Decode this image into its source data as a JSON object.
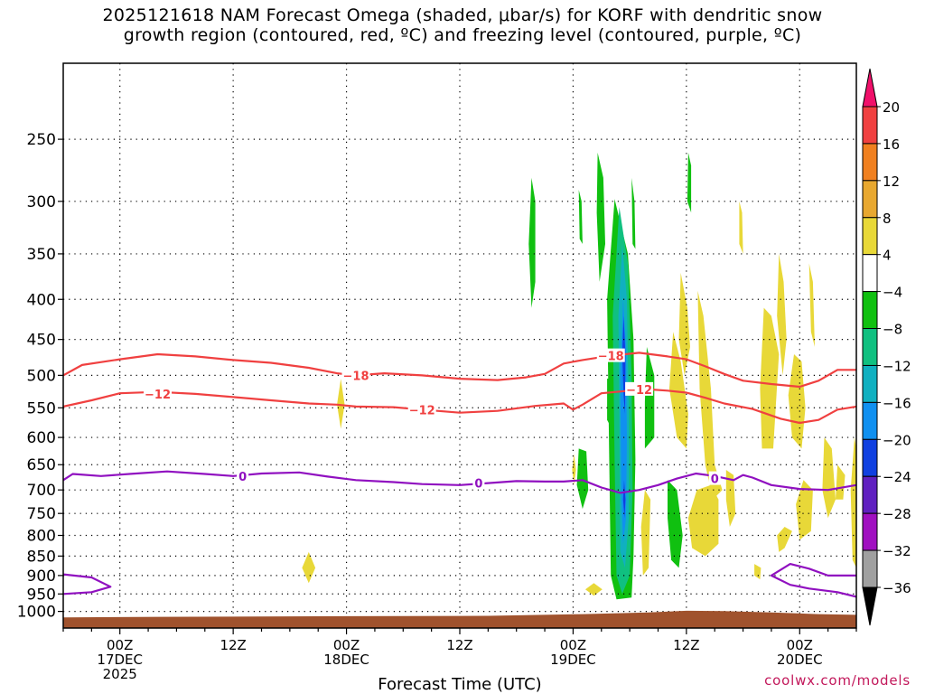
{
  "title": {
    "line1": "2025121618 NAM Forecast Omega (shaded, μbar/s) for KORF with dendritic snow",
    "line2": "growth region (contoured, red, ºC) and freezing level (contoured, purple, ºC)"
  },
  "credit": "coolwx.com/models",
  "chart_data": {
    "type": "time-height cross section",
    "title": "2025121618 NAM Forecast Omega (shaded, μbar/s) for KORF with dendritic snow growth region (contoured, red, ºC) and freezing level (contoured, purple, ºC)",
    "xlabel": "Forecast Time (UTC)",
    "x_unit": "forecast hour from 2025-12-16 18Z",
    "xlim": [
      0,
      84
    ],
    "ylim": [
      1050,
      200
    ],
    "y_scale": "log-pressure (inverted)",
    "y_ticks": [
      250,
      300,
      350,
      400,
      450,
      500,
      550,
      600,
      650,
      700,
      750,
      800,
      850,
      900,
      950,
      1000
    ],
    "grid": true,
    "x_ticks": [
      {
        "x": 6,
        "lines": [
          "00Z",
          "17DEC",
          "2025"
        ]
      },
      {
        "x": 18,
        "lines": [
          "12Z"
        ]
      },
      {
        "x": 30,
        "lines": [
          "00Z",
          "18DEC"
        ]
      },
      {
        "x": 42,
        "lines": [
          "12Z"
        ]
      },
      {
        "x": 54,
        "lines": [
          "00Z",
          "19DEC"
        ]
      },
      {
        "x": 66,
        "lines": [
          "12Z"
        ]
      },
      {
        "x": 78,
        "lines": [
          "00Z",
          "20DEC"
        ]
      }
    ],
    "colorbar": {
      "labels": [
        "20",
        "16",
        "12",
        "8",
        "4",
        "-4",
        "-8",
        "-12",
        "-16",
        "-20",
        "-24",
        "-28",
        "-32",
        "-36"
      ],
      "colors_top_to_bottom": [
        "#f0106a",
        "#f04040",
        "#f08020",
        "#e8a830",
        "#e8d838",
        "#ffffff",
        "#10c010",
        "#10c080",
        "#10b0c0",
        "#1090f0",
        "#1040e0",
        "#6020c0",
        "#a010c0",
        "#a0a0a0",
        "#000000"
      ]
    },
    "omega_colors": {
      "plus_4_8": "#e8d838",
      "minus_4_8": "#10c010",
      "minus_8_12": "#10c080",
      "minus_12_16": "#10b0c0",
      "minus_16_20": "#1090f0",
      "minus_20_24": "#1040e0",
      "minus_24_28": "#6020c0"
    },
    "contours": [
      {
        "level": "-18",
        "color": "#f04040",
        "points": [
          [
            0,
            500
          ],
          [
            2,
            485
          ],
          [
            6,
            477
          ],
          [
            10,
            470
          ],
          [
            14,
            473
          ],
          [
            18,
            478
          ],
          [
            22,
            482
          ],
          [
            26,
            489
          ],
          [
            29,
            497
          ],
          [
            31,
            500
          ],
          [
            34,
            497
          ],
          [
            38,
            500
          ],
          [
            42,
            505
          ],
          [
            46,
            507
          ],
          [
            49,
            503
          ],
          [
            51,
            498
          ],
          [
            53,
            483
          ],
          [
            55,
            478
          ],
          [
            58,
            472
          ],
          [
            61,
            468
          ],
          [
            64,
            473
          ],
          [
            66,
            477
          ],
          [
            68,
            487
          ],
          [
            70,
            498
          ],
          [
            72,
            508
          ],
          [
            75,
            513
          ],
          [
            78,
            517
          ],
          [
            80,
            508
          ],
          [
            82,
            492
          ],
          [
            84,
            492
          ]
        ],
        "labels": [
          [
            31,
            500
          ],
          [
            58,
            472
          ]
        ]
      },
      {
        "level": "-12",
        "color": "#f04040",
        "points": [
          [
            0,
            548
          ],
          [
            3,
            538
          ],
          [
            6,
            527
          ],
          [
            10,
            525
          ],
          [
            14,
            528
          ],
          [
            18,
            533
          ],
          [
            22,
            538
          ],
          [
            26,
            543
          ],
          [
            29,
            545
          ],
          [
            31,
            548
          ],
          [
            35,
            549
          ],
          [
            38,
            553
          ],
          [
            42,
            558
          ],
          [
            46,
            555
          ],
          [
            50,
            547
          ],
          [
            53,
            543
          ],
          [
            54,
            553
          ],
          [
            55,
            545
          ],
          [
            57,
            527
          ],
          [
            60,
            523
          ],
          [
            62,
            521
          ],
          [
            64,
            523
          ],
          [
            66,
            526
          ],
          [
            68,
            534
          ],
          [
            70,
            543
          ],
          [
            73,
            552
          ],
          [
            76,
            568
          ],
          [
            78,
            575
          ],
          [
            80,
            570
          ],
          [
            82,
            553
          ],
          [
            84,
            548
          ]
        ],
        "labels": [
          [
            10,
            528
          ],
          [
            38,
            553
          ],
          [
            61,
            521
          ]
        ]
      },
      {
        "level": "0",
        "color": "#9010c0",
        "points": [
          [
            0,
            680
          ],
          [
            1,
            668
          ],
          [
            4,
            672
          ],
          [
            7,
            668
          ],
          [
            11,
            663
          ],
          [
            15,
            668
          ],
          [
            18,
            672
          ],
          [
            21,
            667
          ],
          [
            25,
            665
          ],
          [
            28,
            673
          ],
          [
            31,
            680
          ],
          [
            35,
            684
          ],
          [
            38,
            688
          ],
          [
            42,
            690
          ],
          [
            45,
            686
          ],
          [
            48,
            682
          ],
          [
            51,
            683
          ],
          [
            53,
            683
          ],
          [
            55,
            680
          ],
          [
            57,
            695
          ],
          [
            59,
            706
          ],
          [
            61,
            700
          ],
          [
            63,
            690
          ],
          [
            65,
            677
          ],
          [
            67,
            667
          ],
          [
            69,
            672
          ],
          [
            71,
            680
          ],
          [
            72,
            670
          ],
          [
            73,
            675
          ],
          [
            75,
            690
          ],
          [
            78,
            698
          ],
          [
            81,
            700
          ],
          [
            84,
            690
          ]
        ],
        "labels": [
          [
            19,
            672
          ],
          [
            44,
            686
          ],
          [
            69,
            677
          ]
        ]
      },
      {
        "level": "0",
        "color": "#9010c0",
        "points": [
          [
            0,
            897
          ],
          [
            3,
            905
          ],
          [
            5,
            930
          ],
          [
            3,
            945
          ],
          [
            0,
            950
          ]
        ],
        "labels": []
      },
      {
        "level": "0",
        "color": "#9010c0",
        "points": [
          [
            84,
            958
          ],
          [
            82,
            945
          ],
          [
            79,
            935
          ],
          [
            77,
            925
          ],
          [
            75,
            900
          ],
          [
            77,
            870
          ],
          [
            79,
            882
          ],
          [
            81,
            900
          ],
          [
            84,
            900
          ]
        ],
        "labels": []
      }
    ],
    "surface_terrain": {
      "color": "#a0522d",
      "points": [
        [
          0,
          1018
        ],
        [
          10,
          1016
        ],
        [
          30,
          1014
        ],
        [
          45,
          1013
        ],
        [
          55,
          1008
        ],
        [
          62,
          1003
        ],
        [
          66,
          998
        ],
        [
          70,
          999
        ],
        [
          75,
          1003
        ],
        [
          80,
          1008
        ],
        [
          84,
          1010
        ]
      ]
    }
  }
}
